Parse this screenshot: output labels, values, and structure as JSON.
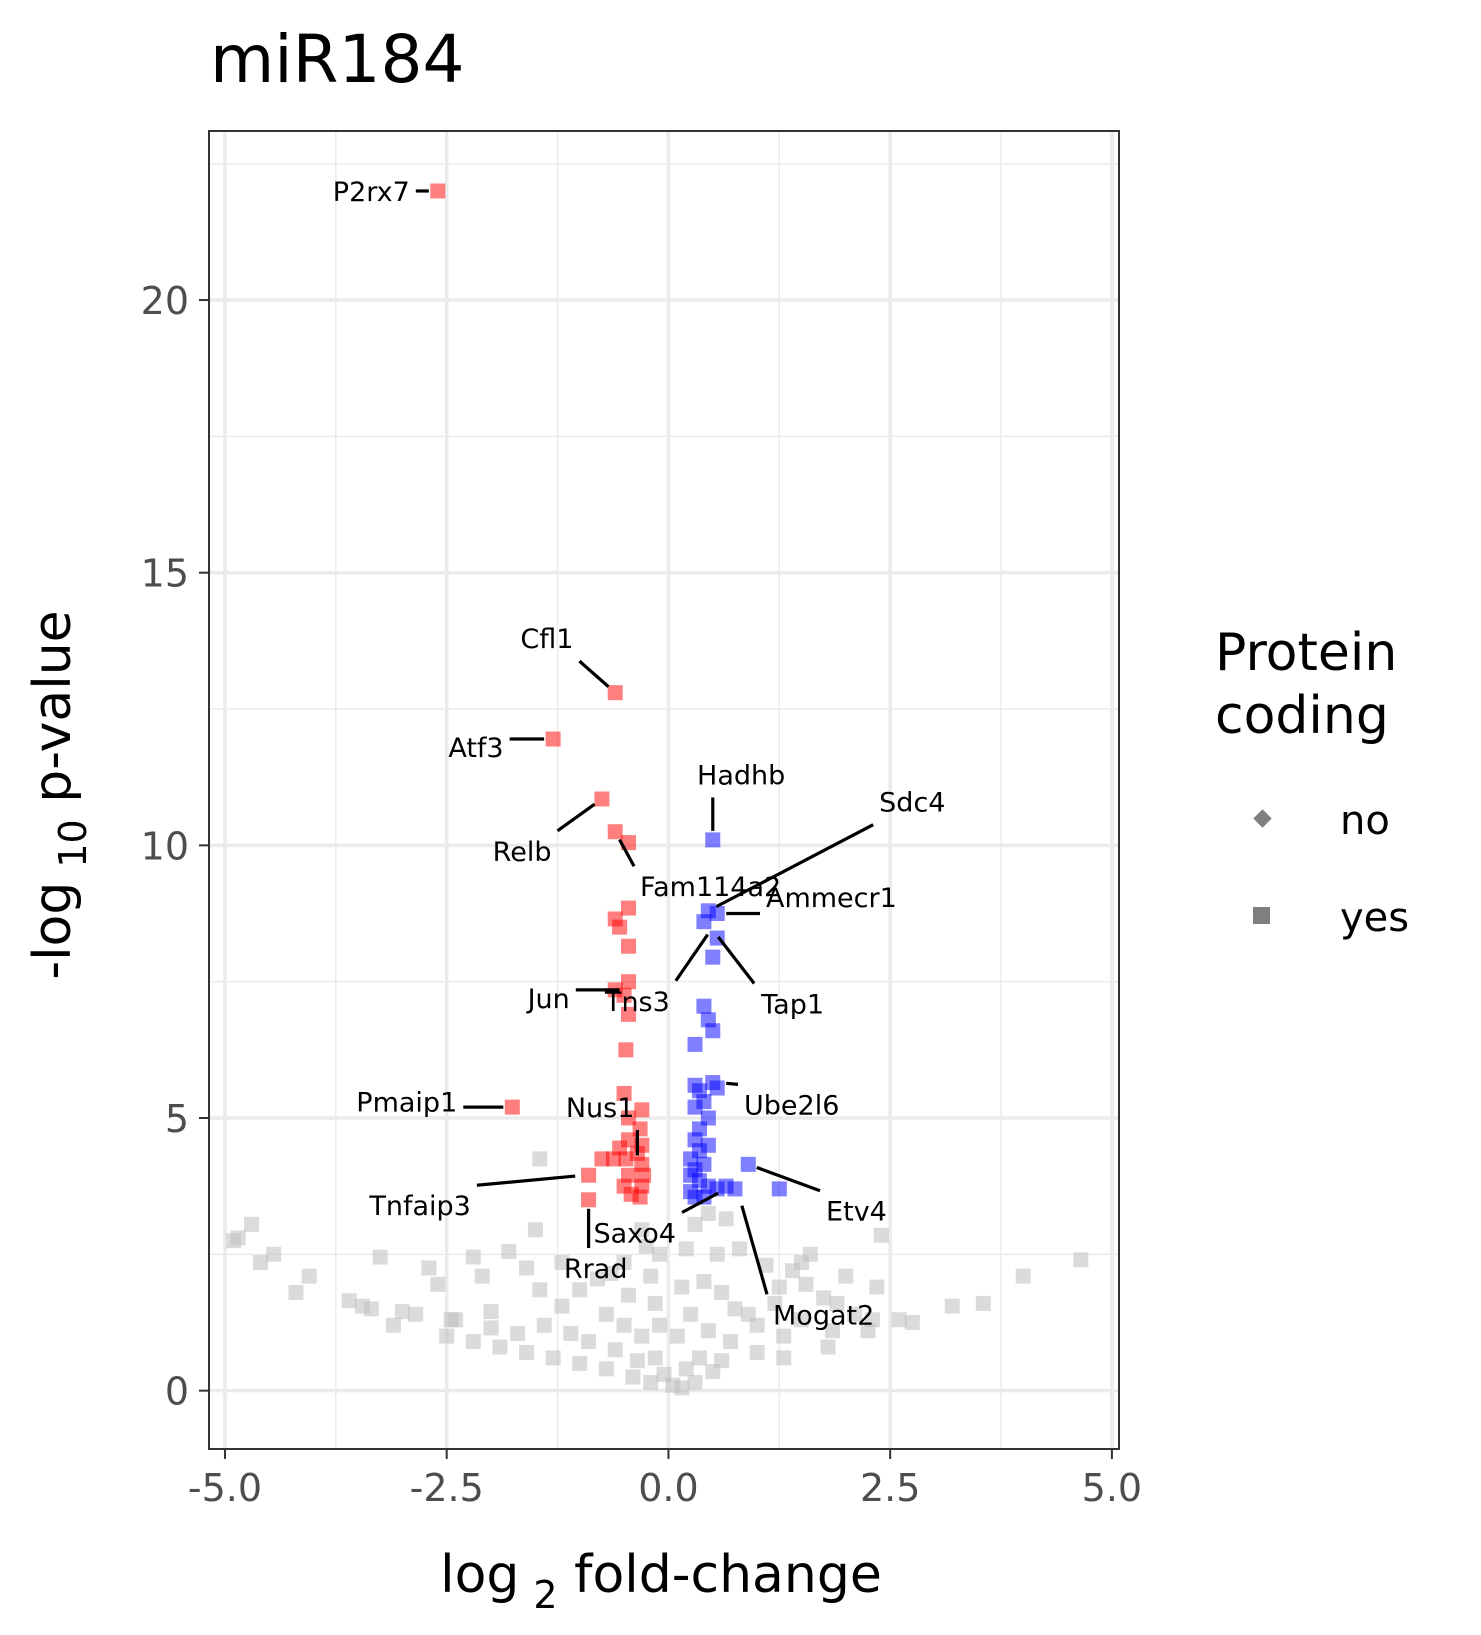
{
  "chart_data": {
    "type": "scatter",
    "title": "miR184",
    "xlabel": {
      "base": "log",
      "sub": "2",
      "rest": " fold-change"
    },
    "ylabel": {
      "base": "-log",
      "sub": "10",
      "rest": " p-value"
    },
    "xlim": [
      -5.18,
      5.08
    ],
    "ylim": [
      -1.07,
      23.1
    ],
    "x_ticks": [
      -5.0,
      -2.5,
      0.0,
      2.5,
      5.0
    ],
    "x_tick_labels": [
      "-5.0",
      "-2.5",
      "0.0",
      "2.5",
      "5.0"
    ],
    "y_ticks": [
      0,
      5,
      10,
      15,
      20
    ],
    "y_tick_labels": [
      "0",
      "5",
      "10",
      "15",
      "20"
    ],
    "grid": true,
    "colors": {
      "down": "#ff0000",
      "up": "#0000ff",
      "ns": "#bebebe"
    },
    "legend": {
      "title": [
        "Protein",
        "coding"
      ],
      "position": "right",
      "entries": [
        {
          "label": "no",
          "shape": "diamond"
        },
        {
          "label": "yes",
          "shape": "square"
        }
      ]
    },
    "series": [
      {
        "group": "down",
        "points": [
          [
            -2.6,
            22.0
          ],
          [
            -1.76,
            5.2
          ],
          [
            -1.3,
            11.95
          ],
          [
            -0.6,
            12.8
          ],
          [
            -0.75,
            10.85
          ],
          [
            -0.6,
            10.25
          ],
          [
            -0.45,
            10.05
          ],
          [
            -0.45,
            8.85
          ],
          [
            -0.6,
            8.65
          ],
          [
            -0.55,
            8.5
          ],
          [
            -0.45,
            8.15
          ],
          [
            -0.45,
            7.5
          ],
          [
            -0.6,
            7.35
          ],
          [
            -0.5,
            7.25
          ],
          [
            -0.45,
            6.9
          ],
          [
            -0.48,
            6.25
          ],
          [
            -0.5,
            5.45
          ],
          [
            -0.3,
            5.15
          ],
          [
            -0.45,
            5.0
          ],
          [
            -0.32,
            4.8
          ],
          [
            -0.45,
            4.6
          ],
          [
            -0.3,
            4.5
          ],
          [
            -0.55,
            4.45
          ],
          [
            -0.35,
            4.35
          ],
          [
            -0.48,
            4.25
          ],
          [
            -0.3,
            4.15
          ],
          [
            -0.62,
            4.25
          ],
          [
            -0.75,
            4.25
          ],
          [
            -0.28,
            3.95
          ],
          [
            -0.45,
            3.95
          ],
          [
            -0.9,
            3.95
          ],
          [
            -0.5,
            3.75
          ],
          [
            -0.3,
            3.75
          ],
          [
            -0.42,
            3.6
          ],
          [
            -0.32,
            3.55
          ],
          [
            -0.9,
            3.5
          ]
        ]
      },
      {
        "group": "up",
        "points": [
          [
            0.5,
            10.1
          ],
          [
            0.45,
            8.8
          ],
          [
            0.55,
            8.75
          ],
          [
            0.4,
            8.6
          ],
          [
            0.55,
            8.3
          ],
          [
            0.5,
            7.95
          ],
          [
            0.4,
            7.05
          ],
          [
            0.45,
            6.8
          ],
          [
            0.5,
            6.6
          ],
          [
            0.3,
            6.35
          ],
          [
            0.3,
            5.6
          ],
          [
            0.5,
            5.65
          ],
          [
            0.55,
            5.55
          ],
          [
            0.35,
            5.5
          ],
          [
            0.4,
            5.3
          ],
          [
            0.3,
            5.2
          ],
          [
            0.45,
            5.0
          ],
          [
            0.35,
            4.8
          ],
          [
            0.3,
            4.6
          ],
          [
            0.45,
            4.5
          ],
          [
            0.35,
            4.4
          ],
          [
            0.25,
            4.25
          ],
          [
            0.4,
            4.15
          ],
          [
            0.3,
            4.05
          ],
          [
            0.25,
            3.95
          ],
          [
            0.35,
            3.85
          ],
          [
            0.45,
            3.75
          ],
          [
            0.25,
            3.65
          ],
          [
            0.55,
            3.7
          ],
          [
            0.65,
            3.75
          ],
          [
            0.75,
            3.7
          ],
          [
            0.9,
            4.15
          ],
          [
            1.25,
            3.7
          ],
          [
            0.4,
            3.55
          ],
          [
            0.3,
            3.55
          ]
        ]
      },
      {
        "group": "ns",
        "points": [
          [
            -4.9,
            2.75
          ],
          [
            -4.7,
            3.05
          ],
          [
            -4.85,
            2.8
          ],
          [
            -4.45,
            2.5
          ],
          [
            -4.6,
            2.35
          ],
          [
            -4.2,
            1.8
          ],
          [
            -4.05,
            2.1
          ],
          [
            -3.6,
            1.65
          ],
          [
            -3.25,
            2.45
          ],
          [
            -3.0,
            1.45
          ],
          [
            -2.85,
            1.4
          ],
          [
            -2.45,
            1.3
          ],
          [
            -3.45,
            1.55
          ],
          [
            -3.1,
            1.2
          ],
          [
            -2.2,
            2.45
          ],
          [
            -1.8,
            2.55
          ],
          [
            -2.7,
            2.25
          ],
          [
            -2.1,
            2.1
          ],
          [
            -1.5,
            2.95
          ],
          [
            -3.35,
            1.5
          ],
          [
            -2.6,
            1.95
          ],
          [
            -2.0,
            1.45
          ],
          [
            -1.6,
            2.25
          ],
          [
            -1.45,
            1.85
          ],
          [
            -1.2,
            2.35
          ],
          [
            -1.0,
            1.85
          ],
          [
            -0.8,
            2.05
          ],
          [
            -0.65,
            2.15
          ],
          [
            -0.5,
            2.35
          ],
          [
            -0.45,
            1.75
          ],
          [
            -0.3,
            2.95
          ],
          [
            -0.25,
            2.65
          ],
          [
            -0.2,
            2.1
          ],
          [
            -0.15,
            1.6
          ],
          [
            -1.45,
            4.25
          ],
          [
            -2.5,
            1.0
          ],
          [
            -2.2,
            0.9
          ],
          [
            -1.9,
            0.8
          ],
          [
            -1.6,
            0.7
          ],
          [
            -1.3,
            0.6
          ],
          [
            -1.0,
            0.5
          ],
          [
            -0.7,
            0.4
          ],
          [
            -0.4,
            0.25
          ],
          [
            -0.2,
            0.15
          ],
          [
            -1.4,
            1.2
          ],
          [
            -1.1,
            1.05
          ],
          [
            -0.9,
            0.9
          ],
          [
            -0.6,
            0.75
          ],
          [
            -0.35,
            0.55
          ],
          [
            -2.4,
            1.3
          ],
          [
            -2.0,
            1.15
          ],
          [
            -1.7,
            1.05
          ],
          [
            -0.5,
            1.2
          ],
          [
            -0.3,
            1.0
          ],
          [
            -0.15,
            0.6
          ],
          [
            -0.1,
            1.2
          ],
          [
            -0.1,
            2.5
          ],
          [
            -0.05,
            0.3
          ],
          [
            -0.7,
            1.4
          ],
          [
            -1.2,
            1.55
          ],
          [
            0.1,
            1.0
          ],
          [
            0.15,
            1.9
          ],
          [
            0.2,
            2.6
          ],
          [
            0.25,
            1.4
          ],
          [
            0.3,
            3.05
          ],
          [
            0.35,
            0.6
          ],
          [
            0.45,
            1.1
          ],
          [
            0.55,
            2.5
          ],
          [
            0.6,
            1.8
          ],
          [
            0.7,
            0.9
          ],
          [
            0.8,
            2.6
          ],
          [
            0.9,
            1.4
          ],
          [
            1.0,
            0.7
          ],
          [
            1.1,
            2.3
          ],
          [
            1.2,
            1.6
          ],
          [
            1.3,
            1.0
          ],
          [
            1.4,
            2.2
          ],
          [
            1.5,
            1.3
          ],
          [
            1.6,
            2.5
          ],
          [
            1.75,
            1.7
          ],
          [
            1.85,
            1.1
          ],
          [
            2.0,
            2.1
          ],
          [
            2.1,
            1.4
          ],
          [
            2.25,
            1.1
          ],
          [
            2.35,
            1.9
          ],
          [
            2.4,
            2.85
          ],
          [
            2.6,
            1.3
          ],
          [
            2.75,
            1.25
          ],
          [
            3.2,
            1.55
          ],
          [
            3.55,
            1.6
          ],
          [
            4.0,
            2.1
          ],
          [
            4.65,
            2.4
          ],
          [
            1.5,
            2.35
          ],
          [
            1.55,
            1.95
          ],
          [
            0.5,
            0.35
          ],
          [
            0.3,
            0.15
          ],
          [
            0.15,
            0.05
          ],
          [
            0.05,
            0.1
          ],
          [
            1.0,
            1.2
          ],
          [
            0.75,
            1.5
          ],
          [
            0.6,
            0.55
          ],
          [
            1.3,
            0.6
          ],
          [
            1.8,
            0.8
          ],
          [
            2.3,
            1.3
          ],
          [
            0.2,
            0.4
          ],
          [
            0.4,
            2.0
          ],
          [
            0.65,
            3.15
          ],
          [
            0.45,
            3.25
          ],
          [
            1.25,
            1.9
          ],
          [
            1.9,
            1.6
          ]
        ]
      }
    ],
    "labels": [
      {
        "text": "P2rx7",
        "x": -2.6,
        "y": 22.0
      },
      {
        "text": "Cfl1",
        "x": -0.6,
        "y": 12.8
      },
      {
        "text": "Atf3",
        "x": -1.3,
        "y": 11.95
      },
      {
        "text": "Hadhb",
        "x": 0.5,
        "y": 10.1
      },
      {
        "text": "Sdc4",
        "x": 0.45,
        "y": 8.8
      },
      {
        "text": "Relb",
        "x": -0.75,
        "y": 10.85
      },
      {
        "text": "Fam114a2",
        "x": -0.6,
        "y": 10.25
      },
      {
        "text": "Ammecr1",
        "x": 0.55,
        "y": 8.75
      },
      {
        "text": "Jun",
        "x": -0.45,
        "y": 7.35
      },
      {
        "text": "Tns3",
        "x": 0.5,
        "y": 8.5
      },
      {
        "text": "Tap1",
        "x": 0.5,
        "y": 8.45
      },
      {
        "text": "Ube2l6",
        "x": 0.55,
        "y": 5.65
      },
      {
        "text": "Pmaip1",
        "x": -1.76,
        "y": 5.2
      },
      {
        "text": "Nus1",
        "x": -0.35,
        "y": 4.15
      },
      {
        "text": "Tnfaip3",
        "x": -0.95,
        "y": 3.95
      },
      {
        "text": "Etv4",
        "x": 0.9,
        "y": 4.15
      },
      {
        "text": "Saxo4",
        "x": 0.65,
        "y": 3.7
      },
      {
        "text": "Rrad",
        "x": -0.9,
        "y": 3.5
      },
      {
        "text": "Mogat2",
        "x": 0.8,
        "y": 3.55
      }
    ]
  }
}
